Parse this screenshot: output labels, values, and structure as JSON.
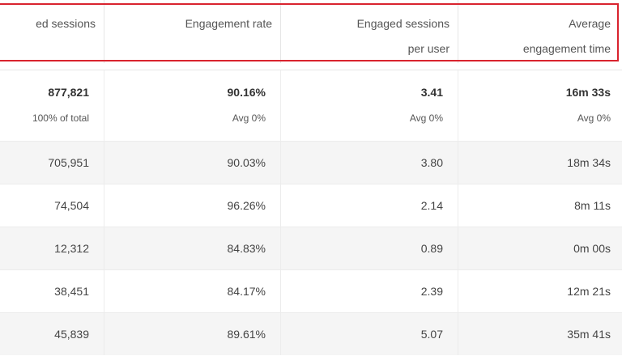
{
  "table": {
    "columns": [
      {
        "label_lines": [
          "ed sessions"
        ]
      },
      {
        "label_lines": [
          "Engagement rate"
        ]
      },
      {
        "label_lines": [
          "Engaged sessions",
          "per user"
        ]
      },
      {
        "label_lines": [
          "Average",
          "engagement time"
        ]
      }
    ],
    "totals": [
      {
        "value": "877,821",
        "sub": "100% of total"
      },
      {
        "value": "90.16%",
        "sub": "Avg 0%"
      },
      {
        "value": "3.41",
        "sub": "Avg 0%"
      },
      {
        "value": "16m 33s",
        "sub": "Avg 0%"
      }
    ],
    "rows": [
      [
        "705,951",
        "90.03%",
        "3.80",
        "18m 34s"
      ],
      [
        "74,504",
        "96.26%",
        "2.14",
        "8m 11s"
      ],
      [
        "12,312",
        "84.83%",
        "0.89",
        "0m 00s"
      ],
      [
        "38,451",
        "84.17%",
        "2.39",
        "12m 21s"
      ],
      [
        "45,839",
        "89.61%",
        "5.07",
        "35m 41s"
      ]
    ]
  },
  "colors": {
    "highlight_border": "#d9232e",
    "row_stripe": "#f5f5f5"
  }
}
